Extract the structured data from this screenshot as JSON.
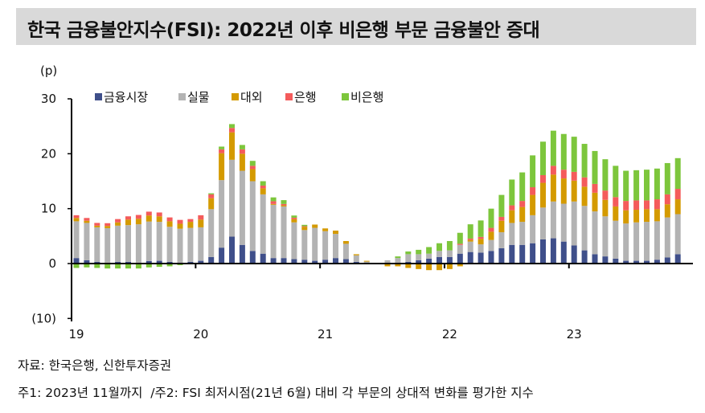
{
  "title": "한국 금융불안지수(FSI): 2022년 이후 비은행 부문 금융불안 증대",
  "notes": {
    "source": "자료: 한국은행, 신한투자증권",
    "footnote": "주1: 2023년 11월까지  /주2: FSI 최저시점(21년 6월) 대비 각 부문의 상대적 변화를 평가한 지수"
  },
  "chart_data": {
    "type": "bar",
    "stacked": true,
    "title": "",
    "ylabel": "(p)",
    "xlabel": "",
    "ylim": [
      -10,
      30
    ],
    "y_ticks": [
      30,
      20,
      10,
      0,
      -10
    ],
    "y_tick_labels": [
      "30",
      "20",
      "10",
      "0",
      "(10)"
    ],
    "x_tick_labels": [
      "19",
      "20",
      "21",
      "22",
      "23"
    ],
    "grid": false,
    "legend_position": "top",
    "x": [
      "2019-01",
      "2019-02",
      "2019-03",
      "2019-04",
      "2019-05",
      "2019-06",
      "2019-07",
      "2019-08",
      "2019-09",
      "2019-10",
      "2019-11",
      "2019-12",
      "2020-01",
      "2020-02",
      "2020-03",
      "2020-04",
      "2020-05",
      "2020-06",
      "2020-07",
      "2020-08",
      "2020-09",
      "2020-10",
      "2020-11",
      "2020-12",
      "2021-01",
      "2021-02",
      "2021-03",
      "2021-04",
      "2021-05",
      "2021-06",
      "2021-07",
      "2021-08",
      "2021-09",
      "2021-10",
      "2021-11",
      "2021-12",
      "2022-01",
      "2022-02",
      "2022-03",
      "2022-04",
      "2022-05",
      "2022-06",
      "2022-07",
      "2022-08",
      "2022-09",
      "2022-10",
      "2022-11",
      "2022-12",
      "2023-01",
      "2023-02",
      "2023-03",
      "2023-04",
      "2023-05",
      "2023-06",
      "2023-07",
      "2023-08",
      "2023-09",
      "2023-10",
      "2023-11"
    ],
    "series": [
      {
        "name": "금융시장",
        "color": "#3f4f8a",
        "values": [
          1.0,
          0.6,
          0.3,
          0.15,
          0.3,
          0.3,
          0.15,
          0.45,
          0.5,
          0.3,
          0.15,
          0.3,
          0.5,
          1.2,
          2.9,
          4.9,
          3.4,
          2.3,
          1.8,
          1.0,
          1.0,
          0.8,
          0.7,
          0.5,
          0.7,
          1.0,
          0.8,
          0.3,
          0.1,
          0,
          0,
          0,
          0.3,
          0.6,
          0.9,
          1.2,
          1.2,
          1.8,
          2.1,
          2.0,
          2.3,
          2.8,
          3.4,
          3.4,
          3.7,
          4.4,
          4.6,
          4.0,
          3.3,
          2.4,
          1.7,
          1.3,
          0.9,
          0.5,
          0.5,
          0.5,
          0.7,
          1.1,
          1.7
        ]
      },
      {
        "name": "실물",
        "color": "#b3b3b3",
        "values": [
          6.7,
          6.8,
          6.3,
          6.3,
          6.6,
          6.7,
          7.0,
          7.2,
          7.1,
          6.4,
          6.2,
          6.2,
          6.1,
          8.7,
          12.3,
          14.0,
          13.5,
          12.7,
          10.8,
          9.7,
          9.4,
          6.7,
          5.4,
          6.0,
          5.2,
          4.4,
          2.8,
          1.2,
          0.25,
          0,
          0.6,
          1.0,
          1.4,
          1.1,
          0.9,
          1.1,
          1.2,
          1.6,
          1.9,
          1.5,
          2.0,
          2.9,
          4.0,
          4.2,
          5.1,
          5.8,
          6.7,
          6.9,
          8.0,
          8.1,
          7.8,
          7.3,
          6.9,
          6.8,
          7.0,
          7.1,
          7.0,
          7.3,
          7.3
        ]
      },
      {
        "name": "대외",
        "color": "#d49a00",
        "values": [
          0.6,
          0.4,
          0.3,
          0.4,
          0.6,
          1.0,
          1.0,
          1.1,
          1.0,
          1.0,
          0.9,
          1.1,
          1.4,
          2.0,
          4.9,
          5.0,
          3.1,
          2.2,
          1.1,
          0.15,
          0.2,
          0.6,
          0.6,
          0.6,
          0.5,
          0.6,
          0.5,
          0.2,
          0.15,
          0,
          -0.5,
          -0.5,
          -0.8,
          -1.0,
          -1.2,
          -1.2,
          -1.0,
          -0.5,
          0.3,
          1.0,
          1.5,
          2.1,
          2.3,
          2.7,
          3.7,
          4.5,
          4.9,
          4.6,
          3.8,
          3.5,
          3.4,
          3.0,
          2.6,
          2.4,
          2.3,
          2.3,
          2.2,
          2.4,
          2.7
        ]
      },
      {
        "name": "은행",
        "color": "#f45b5b",
        "values": [
          0.5,
          0.5,
          0.5,
          0.5,
          0.6,
          0.6,
          0.7,
          0.7,
          0.7,
          0.7,
          0.7,
          0.5,
          0.8,
          0.7,
          0.7,
          0.8,
          0.8,
          0.6,
          0.5,
          0.5,
          0.25,
          0.25,
          0.1,
          0,
          0,
          0,
          0,
          0,
          0,
          0,
          0,
          0,
          0,
          0,
          0,
          0,
          0,
          0.2,
          0.25,
          0.35,
          0.7,
          0.7,
          0.9,
          1.1,
          1.4,
          1.4,
          1.6,
          1.6,
          1.6,
          1.7,
          1.6,
          1.7,
          1.7,
          1.7,
          1.7,
          1.6,
          1.8,
          1.8,
          1.9
        ]
      },
      {
        "name": "비은행",
        "color": "#7dc63c",
        "values": [
          -0.8,
          -0.7,
          -0.8,
          -0.9,
          -0.9,
          -0.9,
          -0.9,
          -0.7,
          -0.6,
          -0.5,
          -0.3,
          0,
          0,
          0.2,
          0.5,
          0.7,
          0.8,
          0.9,
          0.8,
          0.7,
          0.7,
          0.4,
          0.25,
          0,
          0,
          0,
          0,
          0,
          0,
          0,
          0,
          0.3,
          0.5,
          0.8,
          1.2,
          1.4,
          1.7,
          2.0,
          2.6,
          3.0,
          3.5,
          4.0,
          4.7,
          5.2,
          5.8,
          6.1,
          6.4,
          6.5,
          6.4,
          6.1,
          6.0,
          5.7,
          5.7,
          5.5,
          5.5,
          5.6,
          5.6,
          5.7,
          5.6
        ]
      }
    ]
  }
}
